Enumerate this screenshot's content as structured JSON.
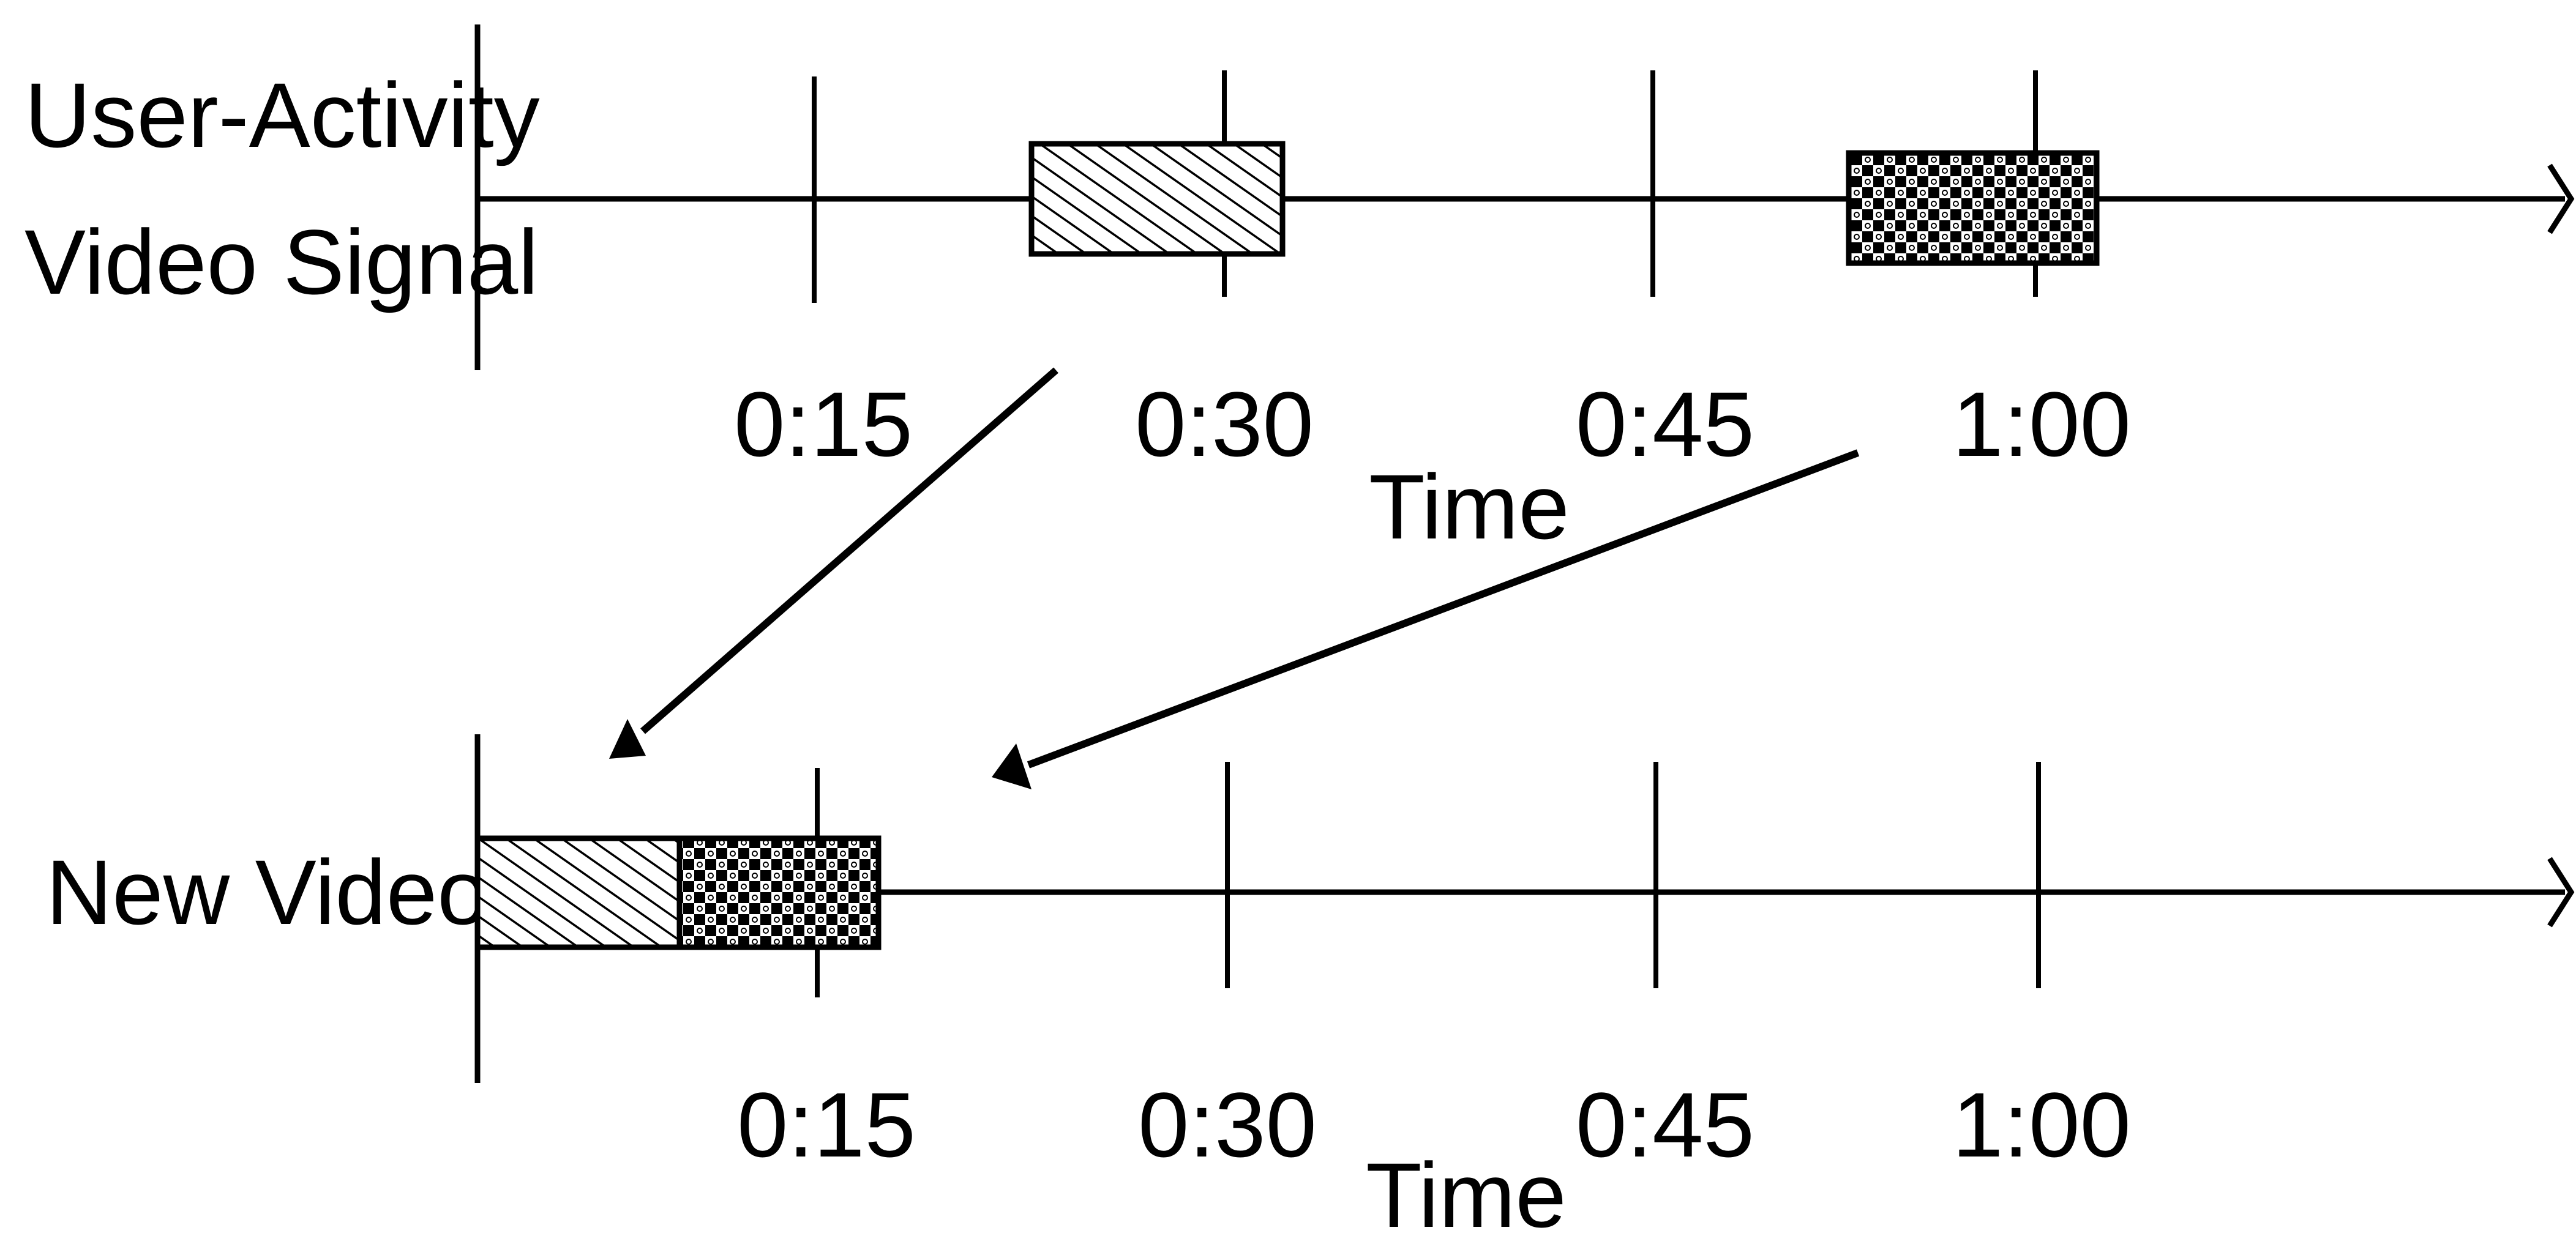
{
  "timelines": {
    "top": {
      "label_line1": "User-Activity",
      "label_line2": "Video Signal",
      "ticks": [
        "0:15",
        "0:30",
        "0:45",
        "1:00"
      ],
      "axis_title": "Time"
    },
    "bottom": {
      "label": "New Video",
      "ticks": [
        "0:15",
        "0:30",
        "0:45",
        "1:00"
      ],
      "axis_title": "Time"
    }
  },
  "segments": {
    "first": {
      "pattern": "diagonal-hatch-pattern"
    },
    "second": {
      "pattern": "checker-pattern"
    }
  },
  "colors": {
    "stroke": "#000000",
    "background": "#ffffff"
  }
}
